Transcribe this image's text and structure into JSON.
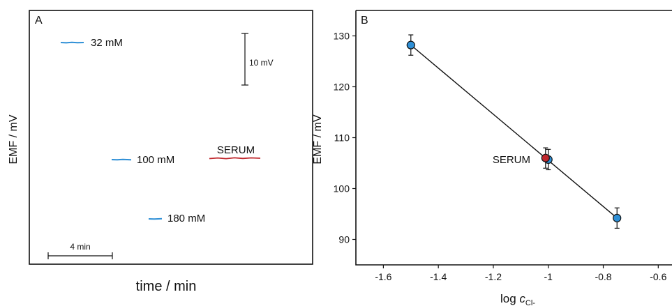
{
  "charts": {
    "a": {
      "panel_label": "A",
      "ylabel": "EMF / mV",
      "xlabel": "time / min",
      "traces": [
        {
          "label": "32 mM",
          "color": "#2e8fd6"
        },
        {
          "label": "100 mM",
          "color": "#2e8fd6"
        },
        {
          "label": "180 mM",
          "color": "#2e8fd6"
        },
        {
          "label": "SERUM",
          "color": "#c0282d"
        }
      ],
      "scale_bar_y": "10 mV",
      "scale_bar_x": "4 min"
    },
    "b": {
      "panel_label": "B",
      "ylabel": "EMF / mV",
      "xlabel_prefix": "log ",
      "xlabel_var": "c",
      "xlabel_sub": "Cl-",
      "annotation": "SERUM",
      "y_ticks": [
        "90",
        "100",
        "110",
        "120",
        "130"
      ],
      "x_ticks": [
        "-1.6",
        "-1.4",
        "-1.2",
        "-1",
        "-0.8",
        "-0.6"
      ]
    }
  },
  "chart_data": [
    {
      "type": "line",
      "panel": "A",
      "xlabel": "time / min",
      "ylabel": "EMF / mV",
      "series": [
        {
          "name": "32 mM",
          "color": "#2e8fd6"
        },
        {
          "name": "100 mM",
          "color": "#2e8fd6"
        },
        {
          "name": "180 mM",
          "color": "#2e8fd6"
        },
        {
          "name": "SERUM",
          "color": "#c0282d"
        }
      ],
      "scale_bars": {
        "y": "10 mV",
        "x": "4 min"
      }
    },
    {
      "type": "scatter",
      "panel": "B",
      "xlabel": "log cCl-",
      "ylabel": "EMF / mV",
      "xlim": [
        -1.7,
        -0.55
      ],
      "ylim": [
        85,
        135
      ],
      "x_ticks": [
        -1.6,
        -1.4,
        -1.2,
        -1,
        -0.8,
        -0.6
      ],
      "y_ticks": [
        90,
        100,
        110,
        120,
        130
      ],
      "grid": false,
      "series": [
        {
          "color": "#2e8fd6",
          "points": [
            {
              "x": -1.5,
              "y": 128.2,
              "err": 2.0
            },
            {
              "x": -1.0,
              "y": 105.7,
              "err": 2.0
            },
            {
              "x": -0.75,
              "y": 94.2,
              "err": 2.0
            }
          ]
        },
        {
          "name": "SERUM",
          "color": "#c0282d",
          "points": [
            {
              "x": -1.01,
              "y": 106.0,
              "err": 2.0
            }
          ]
        }
      ],
      "fit_line": {
        "x": [
          -1.5,
          -0.75
        ],
        "y": [
          128.2,
          94.2
        ]
      }
    }
  ]
}
